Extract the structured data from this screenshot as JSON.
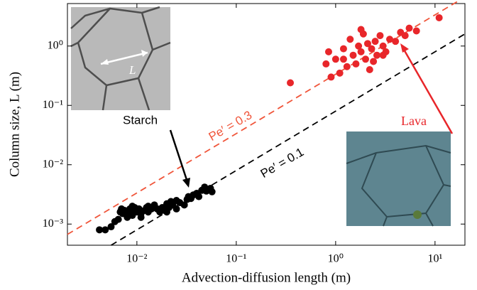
{
  "chart_data": {
    "type": "scatter",
    "xlabel": "Advection-diffusion length (m)",
    "ylabel": "Column size, L (m)",
    "log_x": true,
    "log_y": true,
    "xlim": [
      0.002,
      20
    ],
    "ylim": [
      0.00044,
      5.2
    ],
    "xticks": [
      {
        "value": 0.01,
        "label": "10⁻²"
      },
      {
        "value": 0.1,
        "label": "10⁻¹"
      },
      {
        "value": 1,
        "label": "10⁰"
      },
      {
        "value": 10,
        "label": "10¹"
      }
    ],
    "yticks": [
      {
        "value": 0.001,
        "label": "10⁻³"
      },
      {
        "value": 0.01,
        "label": "10⁻²"
      },
      {
        "value": 0.1,
        "label": "10⁻¹"
      },
      {
        "value": 1,
        "label": "10⁰"
      }
    ],
    "series": [
      {
        "name": "Starch",
        "color": "#000000",
        "x": [
          0.0042,
          0.0048,
          0.0055,
          0.006,
          0.0065,
          0.0068,
          0.007,
          0.0072,
          0.0075,
          0.008,
          0.0085,
          0.009,
          0.0092,
          0.0095,
          0.01,
          0.0105,
          0.011,
          0.011,
          0.012,
          0.0125,
          0.013,
          0.014,
          0.015,
          0.016,
          0.017,
          0.018,
          0.019,
          0.02,
          0.021,
          0.022,
          0.023,
          0.025,
          0.027,
          0.03,
          0.032,
          0.033,
          0.035,
          0.037,
          0.04,
          0.042,
          0.045,
          0.048,
          0.05,
          0.055,
          0.057,
          0.008,
          0.009,
          0.013,
          0.02,
          0.025
        ],
        "values": [
          0.0008,
          0.0008,
          0.0009,
          0.0011,
          0.0012,
          0.0016,
          0.0018,
          0.0015,
          0.0017,
          0.0016,
          0.0018,
          0.0014,
          0.0017,
          0.0019,
          0.0016,
          0.0018,
          0.0015,
          0.0013,
          0.0017,
          0.0019,
          0.0016,
          0.0018,
          0.0021,
          0.0018,
          0.0016,
          0.0019,
          0.0017,
          0.0022,
          0.0019,
          0.0024,
          0.0021,
          0.0018,
          0.0023,
          0.0021,
          0.0026,
          0.0029,
          0.0027,
          0.0031,
          0.0033,
          0.0029,
          0.0037,
          0.0042,
          0.0036,
          0.004,
          0.0035,
          0.0013,
          0.002,
          0.002,
          0.0016,
          0.0025
        ]
      },
      {
        "name": "Lava",
        "color": "#e8262a",
        "x": [
          0.35,
          0.8,
          0.85,
          0.9,
          1.0,
          1.1,
          1.2,
          1.3,
          1.4,
          1.5,
          1.6,
          1.7,
          1.8,
          1.9,
          2.0,
          2.1,
          2.2,
          2.3,
          2.5,
          2.6,
          2.8,
          3.0,
          3.2,
          3.5,
          4.0,
          4.5,
          5.0,
          5.5,
          6.5,
          11,
          1.8,
          2.4,
          1.2,
          3.0
        ],
        "values": [
          0.24,
          0.5,
          0.8,
          0.3,
          0.6,
          0.35,
          0.9,
          0.45,
          1.3,
          0.7,
          0.5,
          1.0,
          0.8,
          1.6,
          0.6,
          1.1,
          0.4,
          0.9,
          1.2,
          0.7,
          1.5,
          1.0,
          0.8,
          1.3,
          1.2,
          1.7,
          1.5,
          2.0,
          1.8,
          3.0,
          1.9,
          0.55,
          0.6,
          0.7
        ]
      }
    ],
    "lines": [
      {
        "name": "Pe′ = 0.3",
        "color": "#f0553a",
        "x": [
          0.002,
          20
        ],
        "values": [
          0.00067,
          6.7
        ]
      },
      {
        "name": "Pe′ = 0.1",
        "color": "#000000",
        "x": [
          0.0055,
          20
        ],
        "values": [
          0.00044,
          1.6
        ]
      }
    ],
    "image_label": "L"
  }
}
